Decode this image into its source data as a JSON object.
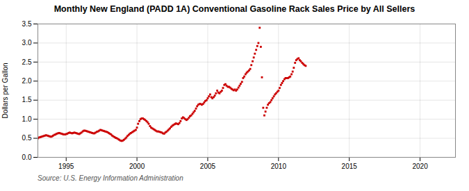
{
  "chart_data": {
    "type": "scatter",
    "title": "Monthly New England (PADD 1A) Conventional Gasoline Rack Sales Price by All Sellers",
    "ylabel": "Dollars per Gallon",
    "annotation": "Source: U.S. Energy Information Administration",
    "color": "#CC0000",
    "marker": "square",
    "grid": true,
    "xlim": [
      1993.0,
      2022.5
    ],
    "ylim": [
      0.0,
      3.5
    ],
    "xticks": [
      1995,
      2000,
      2005,
      2010,
      2015,
      2020
    ],
    "yticks": [
      {
        "value": 0.0,
        "label": "0.0"
      },
      0.5,
      {
        "value": 1.0,
        "label": "1.0"
      },
      1.5,
      {
        "value": 2.0,
        "label": "2.0"
      },
      2.5,
      {
        "value": 3.0,
        "label": "3.0"
      },
      3.5
    ],
    "x": [
      1993.0,
      1993.08,
      1993.17,
      1993.25,
      1993.33,
      1993.42,
      1993.5,
      1993.58,
      1993.67,
      1993.75,
      1993.83,
      1993.92,
      1994.0,
      1994.08,
      1994.17,
      1994.25,
      1994.33,
      1994.42,
      1994.5,
      1994.58,
      1994.67,
      1994.75,
      1994.83,
      1994.92,
      1995.0,
      1995.08,
      1995.17,
      1995.25,
      1995.33,
      1995.42,
      1995.5,
      1995.58,
      1995.67,
      1995.75,
      1995.83,
      1995.92,
      1996.0,
      1996.08,
      1996.17,
      1996.25,
      1996.33,
      1996.42,
      1996.5,
      1996.58,
      1996.67,
      1996.75,
      1996.83,
      1996.92,
      1997.0,
      1997.08,
      1997.17,
      1997.25,
      1997.33,
      1997.42,
      1997.5,
      1997.58,
      1997.67,
      1997.75,
      1997.83,
      1997.92,
      1998.0,
      1998.08,
      1998.17,
      1998.25,
      1998.33,
      1998.42,
      1998.5,
      1998.58,
      1998.67,
      1998.75,
      1998.83,
      1998.92,
      1999.0,
      1999.08,
      1999.17,
      1999.25,
      1999.33,
      1999.42,
      1999.5,
      1999.58,
      1999.67,
      1999.75,
      1999.83,
      1999.92,
      2000.0,
      2000.08,
      2000.17,
      2000.25,
      2000.33,
      2000.42,
      2000.5,
      2000.58,
      2000.67,
      2000.75,
      2000.83,
      2000.92,
      2001.0,
      2001.08,
      2001.17,
      2001.25,
      2001.33,
      2001.42,
      2001.5,
      2001.58,
      2001.67,
      2001.75,
      2001.83,
      2001.92,
      2002.0,
      2002.08,
      2002.17,
      2002.25,
      2002.33,
      2002.42,
      2002.5,
      2002.58,
      2002.67,
      2002.75,
      2002.83,
      2002.92,
      2003.0,
      2003.08,
      2003.17,
      2003.25,
      2003.33,
      2003.42,
      2003.5,
      2003.58,
      2003.67,
      2003.75,
      2003.83,
      2003.92,
      2004.0,
      2004.08,
      2004.17,
      2004.25,
      2004.33,
      2004.42,
      2004.5,
      2004.58,
      2004.67,
      2004.75,
      2004.83,
      2004.92,
      2005.0,
      2005.08,
      2005.17,
      2005.25,
      2005.33,
      2005.42,
      2005.5,
      2005.58,
      2005.67,
      2005.75,
      2005.83,
      2005.92,
      2006.0,
      2006.08,
      2006.17,
      2006.25,
      2006.33,
      2006.42,
      2006.5,
      2006.58,
      2006.67,
      2006.75,
      2006.83,
      2006.92,
      2007.0,
      2007.08,
      2007.17,
      2007.25,
      2007.33,
      2007.42,
      2007.5,
      2007.58,
      2007.67,
      2007.75,
      2007.83,
      2007.92,
      2008.0,
      2008.08,
      2008.17,
      2008.25,
      2008.33,
      2008.42,
      2008.5,
      2008.58,
      2008.67,
      2008.75,
      2008.83,
      2008.92,
      2009.0,
      2009.08,
      2009.17,
      2009.25,
      2009.33,
      2009.42,
      2009.5,
      2009.58,
      2009.67,
      2009.75,
      2009.83,
      2009.92,
      2010.0,
      2010.08,
      2010.17,
      2010.25,
      2010.33,
      2010.42,
      2010.5,
      2010.58,
      2010.67,
      2010.75,
      2010.83,
      2010.92,
      2011.0,
      2011.08,
      2011.17,
      2011.25,
      2011.33,
      2011.42,
      2011.5,
      2011.58,
      2011.67,
      2011.75,
      2011.83,
      2011.92
    ],
    "values": [
      0.5,
      0.52,
      0.53,
      0.54,
      0.55,
      0.56,
      0.57,
      0.58,
      0.57,
      0.56,
      0.55,
      0.54,
      0.55,
      0.57,
      0.59,
      0.6,
      0.62,
      0.63,
      0.64,
      0.63,
      0.62,
      0.61,
      0.6,
      0.6,
      0.61,
      0.62,
      0.64,
      0.65,
      0.64,
      0.63,
      0.64,
      0.65,
      0.64,
      0.63,
      0.62,
      0.61,
      0.63,
      0.65,
      0.68,
      0.7,
      0.7,
      0.69,
      0.68,
      0.67,
      0.66,
      0.65,
      0.64,
      0.63,
      0.63,
      0.65,
      0.67,
      0.68,
      0.7,
      0.72,
      0.71,
      0.7,
      0.69,
      0.68,
      0.67,
      0.66,
      0.64,
      0.62,
      0.6,
      0.57,
      0.55,
      0.53,
      0.51,
      0.5,
      0.48,
      0.46,
      0.44,
      0.43,
      0.44,
      0.46,
      0.49,
      0.52,
      0.56,
      0.59,
      0.62,
      0.64,
      0.66,
      0.68,
      0.7,
      0.72,
      0.78,
      0.88,
      0.95,
      1.0,
      1.02,
      1.02,
      1.0,
      0.98,
      0.95,
      0.92,
      0.88,
      0.82,
      0.78,
      0.76,
      0.74,
      0.72,
      0.7,
      0.68,
      0.68,
      0.67,
      0.66,
      0.65,
      0.63,
      0.62,
      0.65,
      0.67,
      0.7,
      0.73,
      0.76,
      0.8,
      0.83,
      0.85,
      0.87,
      0.89,
      0.88,
      0.87,
      0.9,
      0.95,
      1.02,
      1.05,
      1.03,
      1.0,
      0.98,
      1.0,
      1.04,
      1.08,
      1.1,
      1.14,
      1.18,
      1.22,
      1.28,
      1.34,
      1.38,
      1.4,
      1.4,
      1.38,
      1.4,
      1.44,
      1.48,
      1.5,
      1.55,
      1.6,
      1.65,
      1.58,
      1.55,
      1.58,
      1.62,
      1.68,
      1.75,
      1.7,
      1.68,
      1.72,
      1.75,
      1.82,
      1.9,
      1.92,
      1.88,
      1.85,
      1.85,
      1.83,
      1.8,
      1.78,
      1.76,
      1.78,
      1.75,
      1.78,
      1.83,
      1.88,
      1.93,
      1.98,
      2.08,
      2.12,
      2.18,
      2.22,
      2.25,
      2.28,
      2.32,
      2.42,
      2.52,
      2.62,
      2.72,
      2.82,
      2.92,
      3.0,
      3.4,
      2.9,
      2.1,
      1.3,
      1.1,
      1.2,
      1.3,
      1.38,
      1.42,
      1.45,
      1.5,
      1.55,
      1.6,
      1.65,
      1.68,
      1.72,
      1.75,
      1.82,
      1.9,
      1.95,
      2.0,
      2.05,
      2.08,
      2.08,
      2.08,
      2.1,
      2.12,
      2.18,
      2.25,
      2.35,
      2.48,
      2.55,
      2.58,
      2.6,
      2.55,
      2.52,
      2.48,
      2.45,
      2.42,
      2.4
    ]
  }
}
